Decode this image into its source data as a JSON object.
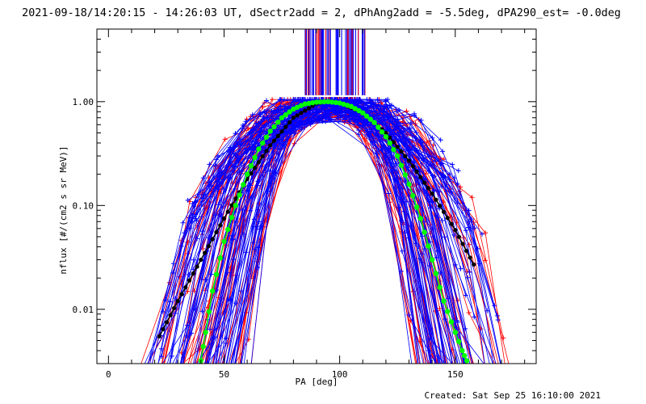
{
  "header": {
    "title": "2021-09-18/14:20:15 - 14:26:03 UT, dSectr2add = 2, dPhAng2add = -5.5deg, dPA290_est= -0.0deg"
  },
  "footer": {
    "created": "Created: Sat Sep 25 16:10:00 2021"
  },
  "colors": {
    "red_traces": "#ff0000",
    "blue_traces": "#0000ff",
    "black_fit": "#000000",
    "green_fit": "#00ff00"
  },
  "chart_data": {
    "type": "line",
    "xlabel": "PA [deg]",
    "ylabel": "nflux [#/(cm2 s sr MeV)]",
    "xlim": [
      -5,
      185
    ],
    "ylim": [
      0.003,
      5
    ],
    "y_scale": "log",
    "grid": false,
    "x_ticks": [
      0,
      50,
      100,
      150
    ],
    "x_tick_labels": [
      "0",
      "50",
      "100",
      "150"
    ],
    "y_ticks": [
      0.01,
      0.1,
      1.0
    ],
    "y_tick_labels": [
      "0.01",
      "0.10",
      "1.00"
    ],
    "series": [
      {
        "color": "#000000",
        "marker": "circle",
        "x": [
          22,
          30,
          40,
          50,
          60,
          70,
          80,
          90,
          95,
          100,
          110,
          120,
          130,
          140,
          150,
          158
        ],
        "y": [
          0.0055,
          0.012,
          0.03,
          0.075,
          0.18,
          0.38,
          0.7,
          0.96,
          1.0,
          0.97,
          0.78,
          0.5,
          0.27,
          0.13,
          0.058,
          0.027
        ]
      },
      {
        "color": "#00ff00",
        "marker": "circle",
        "x": [
          40,
          42,
          45,
          50,
          55,
          60,
          65,
          70,
          75,
          80,
          85,
          90,
          95,
          100,
          105,
          110,
          115,
          120,
          125,
          130,
          135,
          140,
          145,
          150,
          153,
          155
        ],
        "y": [
          0.0032,
          0.006,
          0.015,
          0.045,
          0.1,
          0.2,
          0.35,
          0.52,
          0.7,
          0.85,
          0.95,
          0.99,
          1.0,
          0.97,
          0.9,
          0.78,
          0.63,
          0.46,
          0.3,
          0.16,
          0.075,
          0.03,
          0.012,
          0.006,
          0.004,
          0.0032
        ]
      }
    ]
  }
}
